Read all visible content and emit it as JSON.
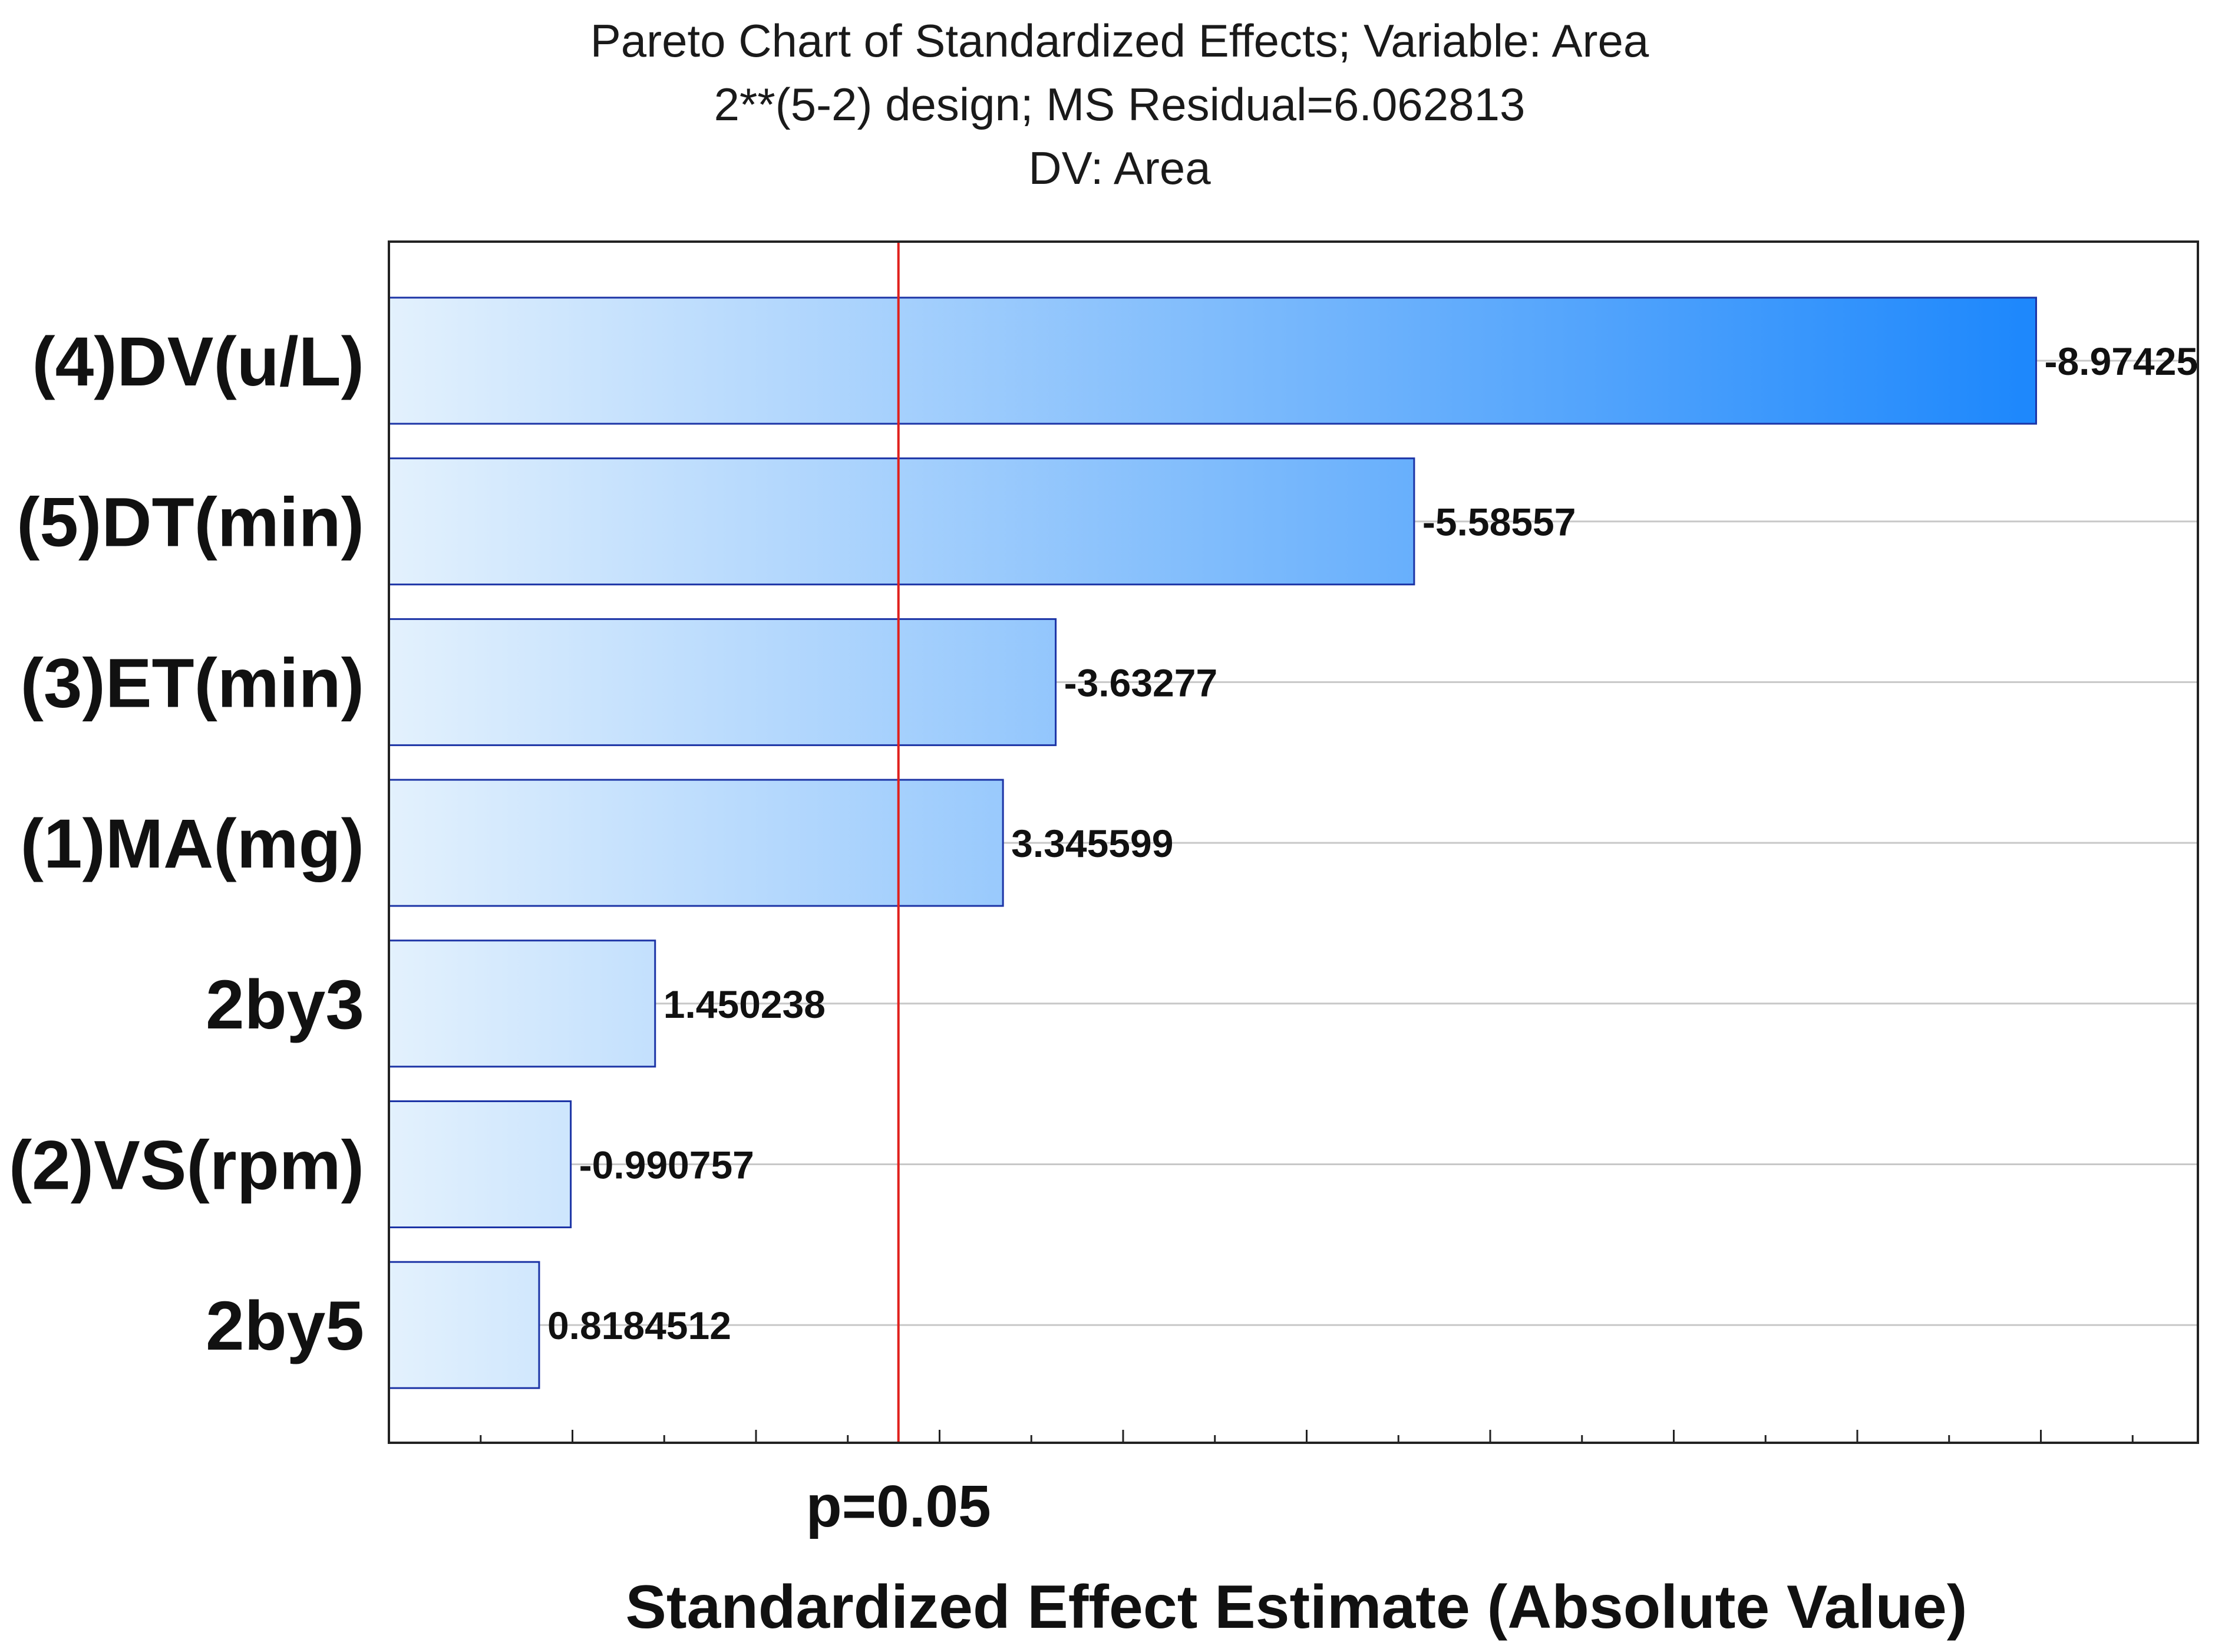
{
  "chart_data": {
    "type": "bar",
    "orientation": "horizontal",
    "title_lines": [
      "Pareto Chart of Standardized Effects; Variable: Area",
      "2**(5-2) design; MS Residual=6.062813",
      "DV: Area"
    ],
    "categories": [
      "(4)DV(u/L)",
      "(5)DT(min)",
      "(3)ET(min)",
      "(1)MA(mg)",
      "2by3",
      "(2)VS(rpm)",
      "2by5"
    ],
    "values": [
      8.97425,
      5.58557,
      3.63277,
      3.345599,
      1.450238,
      0.990757,
      0.8184512
    ],
    "value_labels": [
      "-8.97425",
      "-5.58557",
      "-3.63277",
      "3.345599",
      "1.450238",
      "-0.990757",
      "0.8184512"
    ],
    "xlim": [
      0,
      10
    ],
    "xlabel": "Standardized Effect Estimate (Absolute Value)",
    "reference_line": {
      "value": 2.776,
      "label": "p=0.05",
      "color": "#e0201c"
    },
    "grid": true,
    "colors": {
      "bar_light": "#e3f1fd",
      "bar_dark": "#1e88fc",
      "bar_border": "#1c34a6",
      "grid": "#c8c8c8",
      "frame": "#222222"
    }
  }
}
